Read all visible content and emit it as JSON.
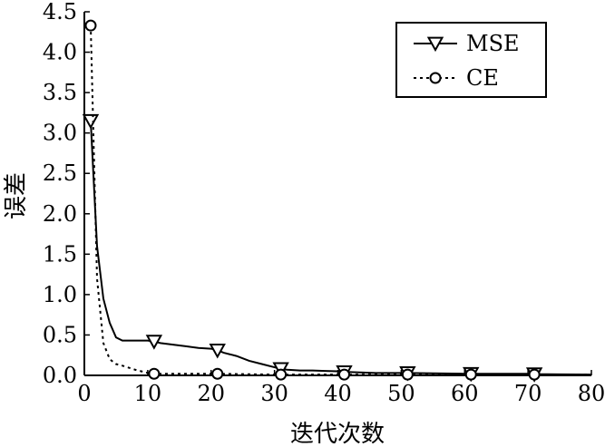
{
  "chart_data": {
    "type": "line",
    "title": "",
    "xlabel": "迭代次数",
    "ylabel": "误差",
    "xlim": [
      0,
      80
    ],
    "ylim": [
      0,
      4.5
    ],
    "x_ticks": [
      0,
      10,
      20,
      30,
      40,
      50,
      60,
      70,
      80
    ],
    "x_tick_labels": [
      "0",
      "10",
      "20",
      "30",
      "40",
      "50",
      "60",
      "70",
      "80"
    ],
    "y_ticks": [
      0.0,
      0.5,
      1.0,
      1.5,
      2.0,
      2.5,
      3.0,
      3.5,
      4.0,
      4.5
    ],
    "y_tick_labels": [
      "0.0",
      "0.5",
      "1.0",
      "1.5",
      "2.0",
      "2.5",
      "3.0",
      "3.5",
      "4.0",
      "4.5"
    ],
    "grid": false,
    "legend_position": "top-right",
    "series": [
      {
        "name": "MSE",
        "line_style": "solid",
        "marker": "triangle-down",
        "x": [
          1,
          2,
          3,
          4,
          5,
          6,
          8,
          10,
          11,
          12,
          14,
          16,
          18,
          20,
          21,
          22,
          24,
          26,
          28,
          30,
          31,
          32,
          34,
          36,
          38,
          40,
          41,
          42,
          44,
          46,
          48,
          50,
          51,
          55,
          60,
          61,
          65,
          70,
          71,
          75,
          80
        ],
        "y": [
          3.15,
          1.6,
          0.95,
          0.65,
          0.47,
          0.43,
          0.43,
          0.43,
          0.42,
          0.4,
          0.38,
          0.36,
          0.34,
          0.33,
          0.31,
          0.28,
          0.24,
          0.18,
          0.14,
          0.1,
          0.08,
          0.07,
          0.06,
          0.06,
          0.055,
          0.05,
          0.04,
          0.04,
          0.035,
          0.03,
          0.03,
          0.03,
          0.03,
          0.025,
          0.02,
          0.02,
          0.02,
          0.02,
          0.015,
          0.012,
          0.01
        ],
        "marker_x": [
          1,
          11,
          21,
          31,
          41,
          51,
          61,
          71
        ]
      },
      {
        "name": "CE",
        "line_style": "dotted",
        "marker": "circle",
        "x": [
          1,
          2,
          3,
          4,
          5,
          6,
          8,
          10,
          11,
          15,
          20,
          21,
          25,
          30,
          31,
          40,
          41,
          50,
          51,
          60,
          61,
          70,
          71,
          80
        ],
        "y": [
          4.33,
          1.2,
          0.4,
          0.2,
          0.14,
          0.12,
          0.07,
          0.03,
          0.02,
          0.02,
          0.02,
          0.02,
          0.015,
          0.01,
          0.01,
          0.01,
          0.01,
          0.01,
          0.01,
          0.01,
          0.01,
          0.01,
          0.01,
          0.01
        ],
        "marker_x": [
          1,
          11,
          21,
          31,
          41,
          51,
          61,
          71
        ]
      }
    ]
  }
}
